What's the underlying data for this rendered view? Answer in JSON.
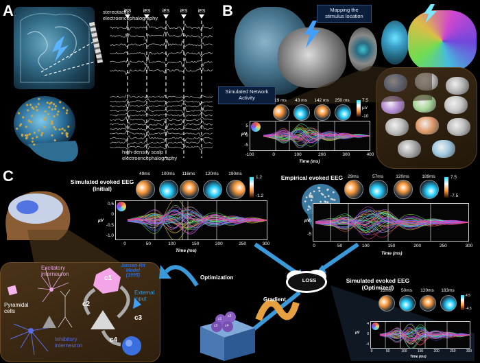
{
  "panels": {
    "a": "A",
    "b": "B",
    "c": "C"
  },
  "panel_a": {
    "seeg_label": "stereotactic\nelectroencephalography",
    "hdeeg_label": "high-density scalp\nelectroencephalography",
    "ies_label": "iES",
    "ies_count": 5
  },
  "panel_b": {
    "mapping_label": "Mapping the\nstimulus location",
    "network_label": "Simulated Network\nActivity",
    "topo_times": [
      "19 ms",
      "43 ms",
      "142 ms",
      "250 ms"
    ],
    "colorbar": {
      "max": "7.5",
      "unit": "µV",
      "min": "-10"
    },
    "plot": {
      "ylabel": "µV",
      "xlabel": "Time (ms)",
      "xticks": [
        "-100",
        "0",
        "100",
        "200",
        "300",
        "400"
      ],
      "yticks": [
        "5",
        "0",
        "-5"
      ]
    }
  },
  "panel_c": {
    "initial_title": "Simulated evoked EEG\n(Initial)",
    "initial_times": [
      "49ms",
      "100ms",
      "116ms",
      "120ms",
      "190ms"
    ],
    "initial_colorbar": {
      "max": "1.2",
      "min": "-1.2"
    },
    "initial_plot": {
      "ylabel": "µV",
      "xlabel": "Time (ms)",
      "xticks": [
        "0",
        "50",
        "100",
        "150",
        "200",
        "250",
        "300"
      ],
      "yticks": [
        "0.5",
        "0",
        "-0.5",
        "-1.0"
      ]
    },
    "empirical_title": "Empirical evoked EEG",
    "empirical_times": [
      "29ms",
      "57ms",
      "120ms",
      "189ms"
    ],
    "empirical_colorbar": {
      "max": "7.5",
      "min": "-7.5"
    },
    "empirical_plot": {
      "ylabel": "µV",
      "xlabel": "Time (ms)",
      "xticks": [
        "0",
        "50",
        "100",
        "150",
        "200",
        "250",
        "300"
      ],
      "yticks": [
        "5",
        "0",
        "-5"
      ]
    },
    "optimized_title": "Simulated evoked EEG\n(Optimized)",
    "optimized_times": [
      "22ms",
      "50ms",
      "120ms",
      "183ms"
    ],
    "optimized_colorbar": {
      "max": "4.5",
      "min": "-4.5"
    },
    "optimized_plot": {
      "ylabel": "µV",
      "xlabel": "Time (ms)",
      "xticks": [
        "0",
        "50",
        "100",
        "150",
        "200",
        "250",
        "300"
      ],
      "yticks": [
        "4",
        "0",
        "-4"
      ]
    },
    "optimization_label": "Optimization",
    "gradient_label": "Gradient",
    "loss_label": "LOSS",
    "cube_labels": [
      "c1",
      "c2",
      "c3",
      "c4"
    ],
    "model": {
      "excitatory": "Excitatory\ninterneuron",
      "pyramidal": "Pyramidal\ncells",
      "inhibitory": "Inhibitory\ninterneuron",
      "jansen_rit": "Jansen-Rit\nModel\n(1995)",
      "external": "External\ninput",
      "c1": "c1",
      "c2": "c2",
      "c3": "c3",
      "c4": "c4"
    }
  },
  "colors": {
    "accent_blue": "#3a9ad9",
    "excitatory": "#e9a6e4",
    "inhibitory": "#5b6ee8",
    "jansen": "#2e6bd6",
    "model_bg": "#3a2a18"
  }
}
